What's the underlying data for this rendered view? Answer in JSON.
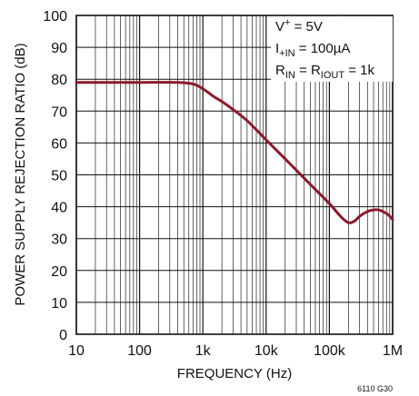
{
  "chart_data": {
    "type": "line",
    "title": "",
    "xlabel": "FREQUENCY (Hz)",
    "ylabel": "POWER SUPPLY REJECTION RATIO (dB)",
    "x_scale": "log",
    "xlim": [
      10,
      1000000
    ],
    "ylim": [
      0,
      100
    ],
    "grid": true,
    "x_ticks": [
      {
        "value": 10,
        "label": "10"
      },
      {
        "value": 100,
        "label": "100"
      },
      {
        "value": 1000,
        "label": "1k"
      },
      {
        "value": 10000,
        "label": "10k"
      },
      {
        "value": 100000,
        "label": "100k"
      },
      {
        "value": 1000000,
        "label": "1M"
      }
    ],
    "y_ticks": [
      0,
      10,
      20,
      30,
      40,
      50,
      60,
      70,
      80,
      90,
      100
    ],
    "series": [
      {
        "color": "#8b1a2e",
        "x": [
          10,
          100,
          400,
          700,
          1000,
          1500,
          2000,
          3000,
          5000,
          10000,
          20000,
          50000,
          100000,
          150000,
          200000,
          250000,
          300000,
          400000,
          500000,
          600000,
          700000,
          850000,
          1000000
        ],
        "y": [
          79,
          79,
          79,
          78.5,
          77,
          74.5,
          73,
          70.5,
          67,
          61,
          55,
          47,
          41,
          37,
          35,
          35.5,
          37,
          38.5,
          39,
          39,
          38.5,
          37.5,
          36
        ]
      }
    ],
    "annotations": {
      "line1": {
        "main": "V",
        "sup": "+",
        "rest": " = 5V"
      },
      "line2": {
        "main": "I",
        "sub": "+IN",
        "rest": " = 100µA"
      },
      "line3": {
        "main1": "R",
        "sub1": "IN",
        "mid": " = R",
        "sub2": "IOUT",
        "rest": " = 1k"
      }
    },
    "figure_id": "6110 G30"
  }
}
